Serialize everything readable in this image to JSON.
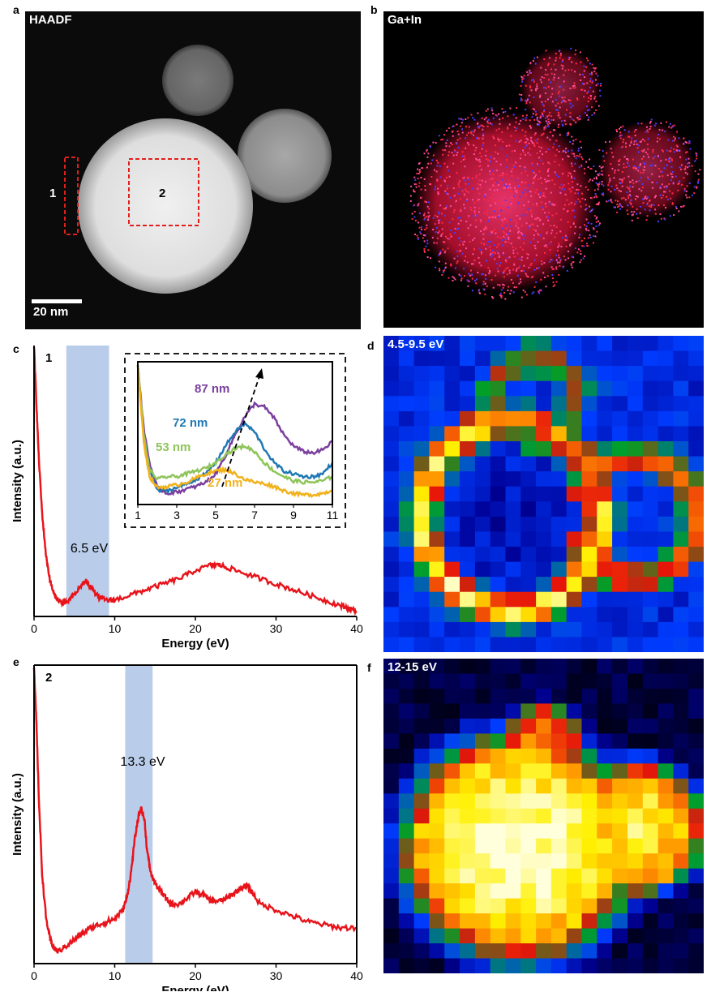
{
  "panels": {
    "a": {
      "letter": "a",
      "label": "HAADF",
      "region1": "1",
      "region2": "2",
      "scalebar": "20 nm"
    },
    "b": {
      "letter": "b",
      "label": "Ga+In"
    },
    "c": {
      "letter": "c"
    },
    "d": {
      "letter": "d",
      "label": "4.5-9.5 eV"
    },
    "e": {
      "letter": "e"
    },
    "f": {
      "letter": "f",
      "label": "12-15 eV"
    }
  },
  "colors": {
    "spectrum": "#e8141b",
    "highlight": "#b9cdea",
    "inset_87": "#7b3f9e",
    "inset_72": "#1f78b4",
    "inset_53": "#8fc45a",
    "inset_27": "#f1b21c"
  },
  "chart_data": [
    {
      "type": "line",
      "panel": "c",
      "corner_label": "1",
      "xlabel": "Energy (eV)",
      "ylabel": "Intensity (a.u.)",
      "xlim": [
        0,
        40
      ],
      "xticks": [
        "0",
        "10",
        "20",
        "30",
        "40"
      ],
      "highlight_band": [
        4,
        9.3
      ],
      "annotation": "6.5 eV",
      "series": [
        {
          "x": [
            0,
            0.3,
            0.6,
            1,
            1.5,
            2,
            2.5,
            3,
            3.5,
            4,
            5,
            6,
            6.5,
            7,
            8,
            9,
            10,
            12,
            14,
            16,
            18,
            20,
            22,
            23,
            24,
            26,
            28,
            30,
            32,
            34,
            36,
            38,
            39,
            40
          ],
          "y": [
            1.0,
            0.78,
            0.58,
            0.38,
            0.22,
            0.13,
            0.08,
            0.06,
            0.05,
            0.05,
            0.08,
            0.12,
            0.13,
            0.11,
            0.07,
            0.06,
            0.06,
            0.08,
            0.1,
            0.12,
            0.14,
            0.17,
            0.19,
            0.19,
            0.18,
            0.16,
            0.14,
            0.12,
            0.1,
            0.08,
            0.06,
            0.04,
            0.03,
            0.02
          ]
        }
      ],
      "inset": {
        "xlim": [
          1,
          11
        ],
        "xticks": [
          "1",
          "3",
          "5",
          "7",
          "9",
          "11"
        ],
        "series": [
          {
            "name": "87 nm",
            "x": [
              1,
              1.3,
              1.6,
              2,
              2.5,
              3,
              3.5,
              4,
              4.5,
              5,
              5.5,
              6,
              6.5,
              7,
              7.5,
              8,
              8.5,
              9,
              9.5,
              10,
              10.5,
              11
            ],
            "y": [
              1.0,
              0.55,
              0.3,
              0.12,
              0.08,
              0.09,
              0.11,
              0.13,
              0.16,
              0.22,
              0.35,
              0.5,
              0.63,
              0.72,
              0.7,
              0.62,
              0.5,
              0.42,
              0.38,
              0.37,
              0.39,
              0.45
            ]
          },
          {
            "name": "72 nm",
            "x": [
              1,
              1.3,
              1.6,
              2,
              2.5,
              3,
              3.5,
              4,
              4.5,
              5,
              5.5,
              6,
              6.5,
              7,
              7.5,
              8,
              8.5,
              9,
              9.5,
              10,
              10.5,
              11
            ],
            "y": [
              1.0,
              0.5,
              0.25,
              0.1,
              0.1,
              0.12,
              0.15,
              0.18,
              0.22,
              0.3,
              0.42,
              0.52,
              0.58,
              0.52,
              0.4,
              0.3,
              0.24,
              0.22,
              0.2,
              0.2,
              0.22,
              0.3
            ]
          },
          {
            "name": "53 nm",
            "x": [
              1,
              1.3,
              1.6,
              2,
              2.5,
              3,
              3.5,
              4,
              4.5,
              5,
              5.5,
              6,
              6.5,
              7,
              7.5,
              8,
              8.5,
              9,
              9.5,
              10,
              10.5,
              11
            ],
            "y": [
              1.0,
              0.5,
              0.25,
              0.18,
              0.2,
              0.2,
              0.22,
              0.24,
              0.26,
              0.3,
              0.36,
              0.4,
              0.42,
              0.38,
              0.3,
              0.24,
              0.2,
              0.17,
              0.16,
              0.16,
              0.17,
              0.2
            ]
          },
          {
            "name": "27 nm",
            "x": [
              1,
              1.3,
              1.6,
              2,
              2.5,
              3,
              3.5,
              4,
              4.5,
              5,
              5.5,
              6,
              6.5,
              7,
              7.5,
              8,
              8.5,
              9,
              9.5,
              10,
              10.5,
              11
            ],
            "y": [
              1.0,
              0.45,
              0.2,
              0.12,
              0.13,
              0.14,
              0.16,
              0.19,
              0.22,
              0.24,
              0.25,
              0.22,
              0.18,
              0.16,
              0.15,
              0.13,
              0.1,
              0.08,
              0.07,
              0.07,
              0.08,
              0.1
            ]
          }
        ]
      }
    },
    {
      "type": "line",
      "panel": "e",
      "corner_label": "2",
      "xlabel": "Energy (eV)",
      "ylabel": "Intensity (a.u.)",
      "xlim": [
        0,
        40
      ],
      "xticks": [
        "0",
        "10",
        "20",
        "30",
        "40"
      ],
      "highlight_band": [
        11.3,
        14.7
      ],
      "annotation": "13.3 eV",
      "series": [
        {
          "x": [
            0,
            0.3,
            0.6,
            1,
            1.5,
            2,
            2.5,
            3,
            4,
            5,
            6,
            7,
            8,
            9,
            10,
            11,
            11.5,
            12,
            12.5,
            13,
            13.3,
            13.7,
            14,
            14.5,
            15,
            16,
            17,
            18,
            19,
            20,
            21,
            22,
            23,
            24,
            25,
            26,
            26.5,
            27,
            28,
            30,
            32,
            34,
            36,
            38,
            40
          ],
          "y": [
            1.0,
            0.8,
            0.55,
            0.3,
            0.15,
            0.08,
            0.05,
            0.04,
            0.06,
            0.08,
            0.1,
            0.12,
            0.13,
            0.14,
            0.15,
            0.18,
            0.22,
            0.3,
            0.42,
            0.5,
            0.52,
            0.48,
            0.38,
            0.3,
            0.27,
            0.23,
            0.2,
            0.2,
            0.22,
            0.24,
            0.23,
            0.21,
            0.21,
            0.22,
            0.24,
            0.26,
            0.26,
            0.24,
            0.2,
            0.18,
            0.16,
            0.14,
            0.13,
            0.12,
            0.12
          ]
        }
      ]
    }
  ]
}
